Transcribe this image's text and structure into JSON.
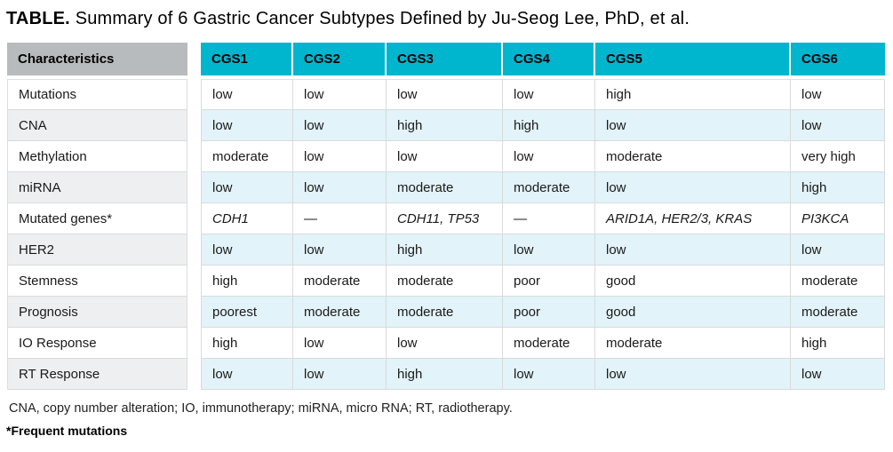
{
  "title": {
    "label": "TABLE.",
    "text": " Summary of 6 Gastric Cancer Subtypes Defined by Ju-Seog Lee, PhD, et al."
  },
  "table": {
    "corner_header": "Characteristics",
    "columns": [
      "CGS1",
      "CGS2",
      "CGS3",
      "CGS4",
      "CGS5",
      "CGS6"
    ],
    "rows": [
      {
        "characteristic": "Mutations",
        "values": [
          "low",
          "low",
          "low",
          "low",
          "high",
          "low"
        ]
      },
      {
        "characteristic": "CNA",
        "values": [
          "low",
          "low",
          "high",
          "high",
          "low",
          "low"
        ]
      },
      {
        "characteristic": "Methylation",
        "values": [
          "moderate",
          "low",
          "low",
          "low",
          "moderate",
          "very high"
        ]
      },
      {
        "characteristic": "miRNA",
        "values": [
          "low",
          "low",
          "moderate",
          "moderate",
          "low",
          "high"
        ]
      },
      {
        "characteristic": "Mutated genes*",
        "values": [
          "CDH1",
          "—",
          "CDH11, TP53",
          "—",
          "ARID1A, HER2/3, KRAS",
          "PI3KCA"
        ],
        "italic": true
      },
      {
        "characteristic": "HER2",
        "values": [
          "low",
          "low",
          "high",
          "low",
          "low",
          "low"
        ]
      },
      {
        "characteristic": "Stemness",
        "values": [
          "high",
          "moderate",
          "moderate",
          "poor",
          "good",
          "moderate"
        ]
      },
      {
        "characteristic": "Prognosis",
        "values": [
          "poorest",
          "moderate",
          "moderate",
          "poor",
          "good",
          "moderate"
        ]
      },
      {
        "characteristic": "IO Response",
        "values": [
          "high",
          "low",
          "low",
          "moderate",
          "moderate",
          "high"
        ]
      },
      {
        "characteristic": "RT Response",
        "values": [
          "low",
          "low",
          "high",
          "low",
          "low",
          "low"
        ]
      }
    ]
  },
  "footnotes": {
    "abbreviations": "CNA, copy number alteration; IO, immunotherapy; miRNA, micro RNA; RT, radiotherapy.",
    "asterisk": "*Frequent mutations"
  },
  "colors": {
    "header_teal": "#00b6cf",
    "header_gray": "#b7bbbe",
    "row_stripe_blue": "#e2f3f9",
    "row_stripe_gray": "#edeff0",
    "border": "#d8dbdc",
    "text": "#1a1a1a"
  }
}
